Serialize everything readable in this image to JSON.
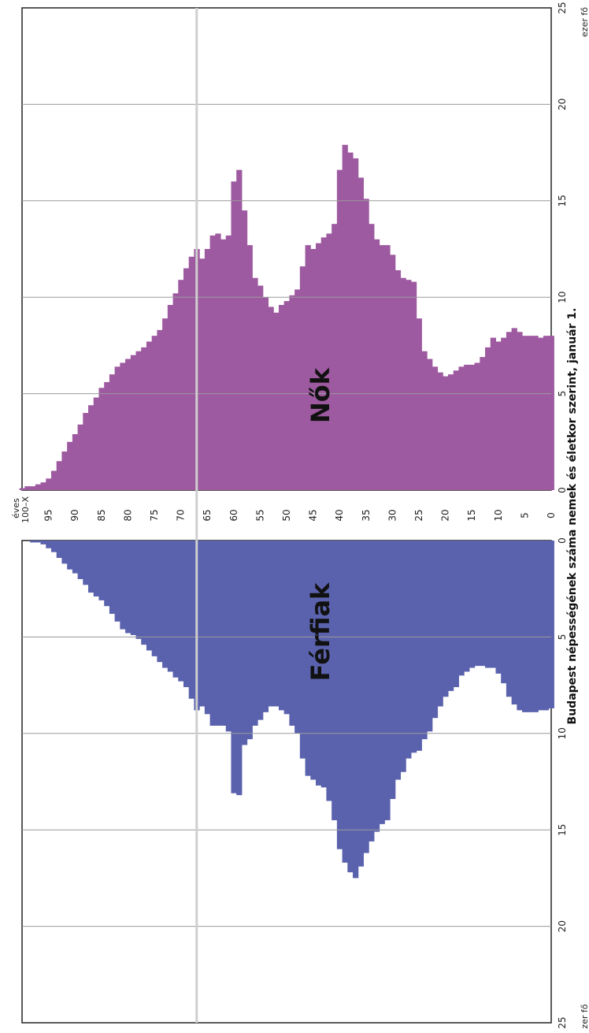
{
  "chart_data": {
    "type": "bar",
    "orientation": "population-pyramid",
    "title": "Budapest népességének száma nemek és életkor szerint, január 1.",
    "age_axis": {
      "label": "éves",
      "top_label": "100–X",
      "ticks": [
        "95",
        "90",
        "85",
        "80",
        "75",
        "70",
        "65",
        "60",
        "55",
        "50",
        "45",
        "40",
        "35",
        "30",
        "25",
        "20",
        "15",
        "10",
        "5",
        "0"
      ]
    },
    "value_axis": {
      "unit": "ezer fő",
      "unit_left": "zer fő",
      "range": [
        0,
        25
      ],
      "ticks": [
        "0",
        "5",
        "10",
        "15",
        "20",
        "25"
      ],
      "grid": true
    },
    "marker_age": 67,
    "ages": [
      100,
      99,
      98,
      97,
      96,
      95,
      94,
      93,
      92,
      91,
      90,
      89,
      88,
      87,
      86,
      85,
      84,
      83,
      82,
      81,
      80,
      79,
      78,
      77,
      76,
      75,
      74,
      73,
      72,
      71,
      70,
      69,
      68,
      67,
      66,
      65,
      64,
      63,
      62,
      61,
      60,
      59,
      58,
      57,
      56,
      55,
      54,
      53,
      52,
      51,
      50,
      49,
      48,
      47,
      46,
      45,
      44,
      43,
      42,
      41,
      40,
      39,
      38,
      37,
      36,
      35,
      34,
      33,
      32,
      31,
      30,
      29,
      28,
      27,
      26,
      25,
      24,
      23,
      22,
      21,
      20,
      19,
      18,
      17,
      16,
      15,
      14,
      13,
      12,
      11,
      10,
      9,
      8,
      7,
      6,
      5,
      4,
      3,
      2,
      1,
      0
    ],
    "series": [
      {
        "name": "Nők",
        "color": "#9e5aa0",
        "values": [
          0.1,
          0.2,
          0.2,
          0.3,
          0.4,
          0.6,
          1.0,
          1.5,
          2.0,
          2.5,
          2.9,
          3.4,
          4.0,
          4.4,
          4.8,
          5.3,
          5.6,
          6.0,
          6.4,
          6.6,
          6.8,
          7.0,
          7.2,
          7.4,
          7.7,
          8.0,
          8.3,
          8.9,
          9.6,
          10.2,
          10.9,
          11.5,
          12.1,
          12.5,
          12.0,
          12.5,
          13.2,
          13.3,
          13.0,
          13.2,
          16.0,
          16.6,
          14.5,
          12.7,
          11.0,
          10.6,
          10.0,
          9.5,
          9.2,
          9.6,
          9.8,
          10.1,
          10.4,
          11.6,
          12.7,
          12.5,
          12.8,
          13.1,
          13.3,
          13.8,
          16.6,
          17.9,
          17.5,
          17.2,
          16.2,
          15.1,
          13.8,
          13.0,
          12.7,
          12.7,
          12.2,
          11.4,
          11.0,
          10.9,
          10.8,
          8.9,
          7.2,
          6.8,
          6.4,
          6.1,
          5.9,
          6.0,
          6.2,
          6.4,
          6.5,
          6.5,
          6.6,
          6.9,
          7.4,
          7.9,
          7.7,
          7.9,
          8.2,
          8.4,
          8.2,
          8.0,
          8.0,
          8.0,
          7.9,
          8.0,
          8.0
        ]
      },
      {
        "name": "Férfiak",
        "color": "#5a62ad",
        "values": [
          0.0,
          0.0,
          0.1,
          0.1,
          0.2,
          0.4,
          0.6,
          0.9,
          1.2,
          1.5,
          1.7,
          2.0,
          2.3,
          2.7,
          2.9,
          3.1,
          3.4,
          3.8,
          4.2,
          4.6,
          4.8,
          4.9,
          5.1,
          5.4,
          5.7,
          6.0,
          6.3,
          6.6,
          6.8,
          7.1,
          7.3,
          7.6,
          8.2,
          8.8,
          8.6,
          9.0,
          9.6,
          9.6,
          9.6,
          9.9,
          13.1,
          13.2,
          10.6,
          10.3,
          9.6,
          9.3,
          8.9,
          8.6,
          8.6,
          8.8,
          9.0,
          9.6,
          10.0,
          11.3,
          12.2,
          12.4,
          12.7,
          12.8,
          13.5,
          14.5,
          16.0,
          16.7,
          17.2,
          17.5,
          16.9,
          16.2,
          15.6,
          15.1,
          14.7,
          14.5,
          13.4,
          12.4,
          12.0,
          11.3,
          11.0,
          10.9,
          10.3,
          9.9,
          9.2,
          8.6,
          8.1,
          7.8,
          7.6,
          7.0,
          6.8,
          6.6,
          6.5,
          6.5,
          6.6,
          6.6,
          6.9,
          7.4,
          8.1,
          8.5,
          8.8,
          8.9,
          8.9,
          8.9,
          8.8,
          8.8,
          8.7
        ]
      }
    ]
  }
}
